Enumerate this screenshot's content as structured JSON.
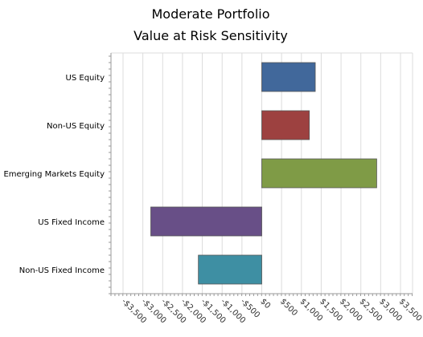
{
  "chart_data": {
    "type": "bar",
    "orientation": "horizontal",
    "title": [
      "Moderate Portfolio",
      "Value at Risk Sensitivity"
    ],
    "categories": [
      "US Equity",
      "Non-US Equity",
      "Emerging Markets Equity",
      "US Fixed Income",
      "Non-US Fixed Income"
    ],
    "values": [
      1350,
      1200,
      2900,
      -2800,
      -1600
    ],
    "colors": [
      "#41689b",
      "#9d4140",
      "#7f9b46",
      "#684f87",
      "#3e8fa3"
    ],
    "xlim": [
      -3500,
      3500
    ],
    "x_ticks": [
      -3500,
      -3000,
      -2500,
      -2000,
      -1500,
      -1000,
      -500,
      0,
      500,
      1000,
      1500,
      2000,
      2500,
      3000,
      3500
    ],
    "x_tick_labels": [
      "-$3,500",
      "-$3,000",
      "-$2,500",
      "-$2,000",
      "-$1,500",
      "-$1,000",
      "-$500",
      "$0",
      "$500",
      "$1,000",
      "$1,500",
      "$2,000",
      "$2,500",
      "$3,000",
      "$3,500"
    ],
    "xlabel": "",
    "ylabel": "",
    "grid": true,
    "legend": false
  }
}
